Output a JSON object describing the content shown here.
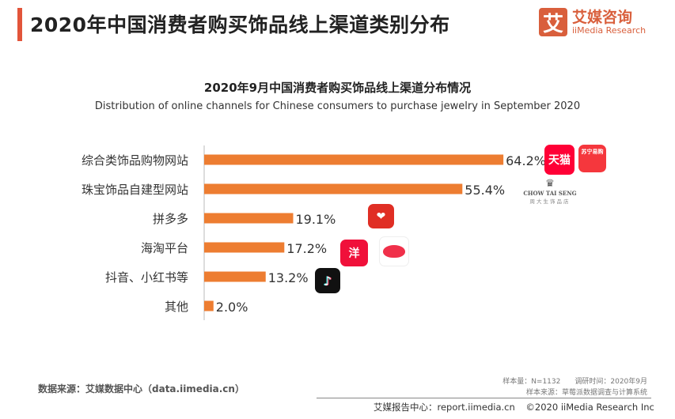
{
  "header": {
    "title": "2020年中国消费者购买饰品线上渠道类别分布"
  },
  "logo": {
    "mark": "艾",
    "cn": "艾媒咨询",
    "en": "iiMedia Research"
  },
  "chart_data": {
    "type": "bar",
    "orientation": "horizontal",
    "title": "2020年9月中国消费者购买饰品线上渠道分布情况",
    "subtitle": "Distribution of online channels for Chinese consumers to purchase jewelry in September 2020",
    "categories": [
      "综合类饰品购物网站",
      "珠宝饰品自建型网站",
      "拼多多",
      "海淘平台",
      "抖音、小红书等",
      "其他"
    ],
    "values": [
      64.2,
      55.4,
      19.1,
      17.2,
      13.2,
      2.0
    ],
    "labels": [
      "64.2%",
      "55.4%",
      "19.1%",
      "17.2%",
      "13.2%",
      "2.0%"
    ],
    "unit": "%",
    "bar_color": "#ed7d31",
    "grid": false
  },
  "brand_icons": {
    "tmall": "天猫",
    "suning": "苏宁易购",
    "chowtaiseng_en": "CHOW TAI SENG",
    "chowtaiseng_cn": "周大生饰品店",
    "pinduoduo": "拼",
    "yang": "洋",
    "kaola": "kaola",
    "douyin": "♪"
  },
  "footer": {
    "source": "数据来源：艾媒数据中心（data.iimedia.cn）",
    "sample": "样本量：N=1132　　调研时间：2020年9月",
    "sample_source": "样本来源：草莓派数据调查与计算系统",
    "report_center": "艾媒报告中心：report.iimedia.cn",
    "copyright": "©2020  iiMedia Research  Inc"
  }
}
